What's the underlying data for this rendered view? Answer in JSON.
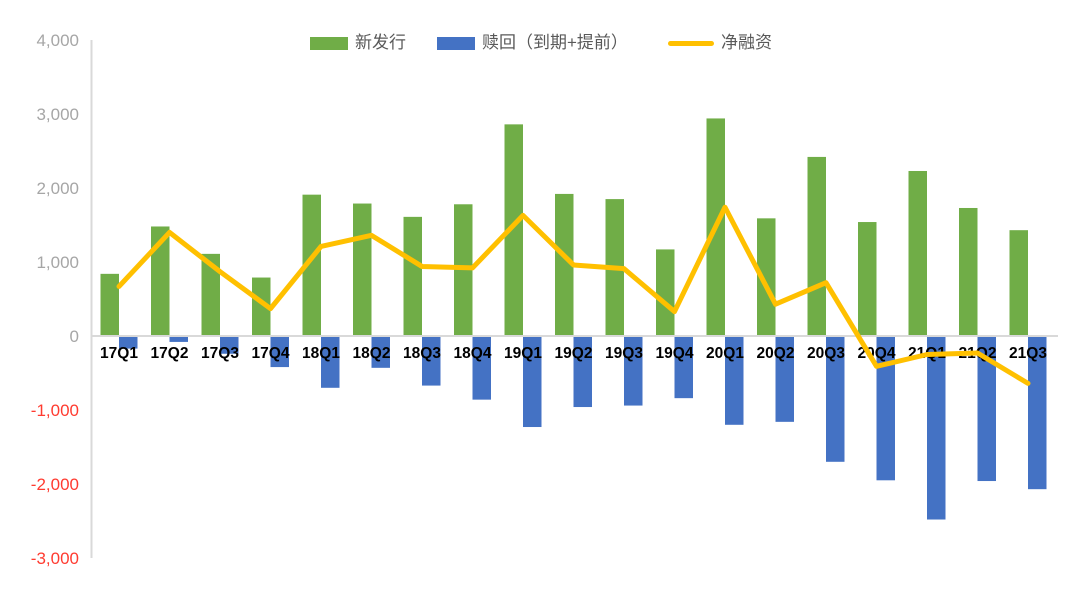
{
  "colors": {
    "background": "#FFFFFF",
    "issuance_green": "#70AD47",
    "redemption_blue": "#4472C4",
    "net_yellow": "#FFC000",
    "axis_line": "#D9D9D9",
    "tick_positive": "#A6A6A6",
    "tick_negative": "#FF3B30",
    "category_label": "#000000",
    "legend_text": "#595959"
  },
  "legend": {
    "items": [
      {
        "label": "新发行",
        "marker": "rect",
        "color": "#70AD47"
      },
      {
        "label": "赎回（到期+提前）",
        "marker": "rect",
        "color": "#4472C4"
      },
      {
        "label": "净融资",
        "marker": "line",
        "color": "#FFC000"
      }
    ]
  },
  "chart_data": {
    "type": "bar",
    "subtype": "clustered-bars-with-line-overlay",
    "title": "",
    "xlabel": "",
    "ylabel": "",
    "grid": false,
    "legend_position": "top",
    "ylim": [
      -3000,
      4000
    ],
    "yticks": [
      {
        "value": 4000,
        "label": "4,000"
      },
      {
        "value": 3000,
        "label": "3,000"
      },
      {
        "value": 2000,
        "label": "2,000"
      },
      {
        "value": 1000,
        "label": "1,000"
      },
      {
        "value": 0,
        "label": "0"
      },
      {
        "value": -1000,
        "label": "-1,000"
      },
      {
        "value": -2000,
        "label": "-2,000"
      },
      {
        "value": -3000,
        "label": "-3,000"
      }
    ],
    "categories": [
      "17Q1",
      "17Q2",
      "17Q3",
      "17Q4",
      "18Q1",
      "18Q2",
      "18Q3",
      "18Q4",
      "19Q1",
      "19Q2",
      "19Q3",
      "19Q4",
      "20Q1",
      "20Q2",
      "20Q3",
      "20Q4",
      "21Q1",
      "21Q2",
      "21Q3"
    ],
    "series": [
      {
        "name": "新发行",
        "type": "bar",
        "color": "#70AD47",
        "values": [
          840,
          1480,
          1110,
          790,
          1910,
          1790,
          1610,
          1780,
          2860,
          1920,
          1850,
          1170,
          2940,
          1590,
          2420,
          1540,
          2230,
          1730,
          1430
        ]
      },
      {
        "name": "赎回（到期+提前）",
        "type": "bar",
        "color": "#4472C4",
        "values": [
          -170,
          -80,
          -240,
          -420,
          -700,
          -430,
          -670,
          -860,
          -1230,
          -960,
          -940,
          -840,
          -1200,
          -1160,
          -1700,
          -1950,
          -2480,
          -1960,
          -2070
        ]
      },
      {
        "name": "净融资",
        "type": "line",
        "color": "#FFC000",
        "values": [
          670,
          1400,
          870,
          370,
          1210,
          1360,
          940,
          920,
          1630,
          960,
          910,
          330,
          1740,
          430,
          720,
          -410,
          -250,
          -230,
          -640
        ]
      }
    ]
  }
}
